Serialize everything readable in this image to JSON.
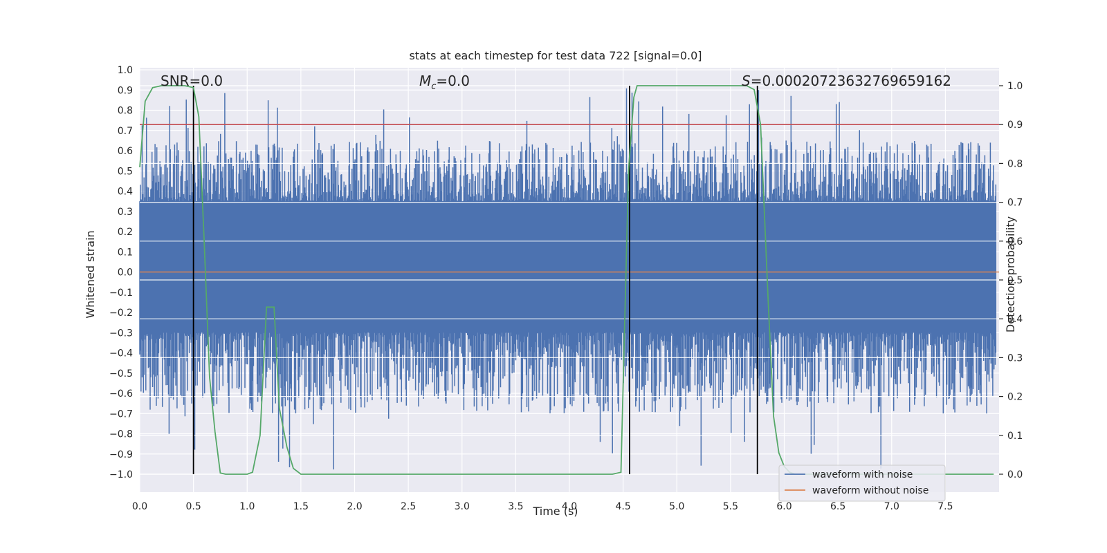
{
  "chart_data": {
    "type": "line",
    "title": "stats at each timestep for test data 722 [signal=0.0]",
    "xlabel": "Time (s)",
    "ylabel": "Whitened strain",
    "y2label": "Detection probability",
    "xlim": [
      0.0,
      8.0
    ],
    "ylim": [
      -1.18,
      1.02
    ],
    "y2lim": [
      -0.05,
      1.05
    ],
    "x_ticks": [
      "0.0",
      "0.5",
      "1.0",
      "1.5",
      "2.0",
      "2.5",
      "3.0",
      "3.5",
      "4.0",
      "4.5",
      "5.0",
      "5.5",
      "6.0",
      "6.5",
      "7.0",
      "7.5"
    ],
    "y_ticks": [
      "1.0",
      "0.9",
      "0.8",
      "0.7",
      "0.6",
      "0.5",
      "0.4",
      "0.3",
      "0.2",
      "0.1",
      "0.0",
      "−0.1",
      "−0.2",
      "−0.3",
      "−0.4",
      "−0.5",
      "−0.6",
      "−0.7",
      "−0.8",
      "−0.9",
      "−1.0"
    ],
    "y2_ticks": [
      "1.0",
      "0.9",
      "0.8",
      "0.7",
      "0.6",
      "0.5",
      "0.4",
      "0.3",
      "0.2",
      "0.1",
      "0.0"
    ],
    "grid": true,
    "annotations": {
      "snr": "SNR=0.0",
      "mc_symbol": "M",
      "mc_sub": "c",
      "mc_value": "=0.0",
      "s_symbol": "S",
      "s_value": "=0.00020723632769659162"
    },
    "threshold": {
      "y2": 0.9,
      "color": "#c44e52"
    },
    "noise_envelope": {
      "typical_peak": 0.5,
      "max_peak": 0.92,
      "min_peak": -1.0,
      "dense_band": [
        -0.3,
        0.35
      ]
    },
    "series": [
      {
        "name": "waveform with noise",
        "color": "#4c72b0",
        "x_range": [
          0.0,
          8.0
        ]
      },
      {
        "name": "waveform without noise",
        "color": "#dd8452",
        "x": [
          0.0,
          8.0
        ],
        "y": [
          0.0,
          0.0
        ]
      },
      {
        "color": "#55a868",
        "axis": "y2",
        "x": [
          0.0,
          0.05,
          0.12,
          0.2,
          0.3,
          0.42,
          0.5,
          0.55,
          0.6,
          0.65,
          0.7,
          0.75,
          0.8,
          0.9,
          1.0,
          1.05,
          1.12,
          1.18,
          1.25,
          1.3,
          1.37,
          1.43,
          1.5,
          1.6,
          2.0,
          3.0,
          4.0,
          4.4,
          4.48,
          4.55,
          4.6,
          4.63,
          4.7,
          5.0,
          5.5,
          5.65,
          5.72,
          5.78,
          5.85,
          5.9,
          5.95,
          6.0,
          6.05,
          6.1,
          6.3,
          7.0,
          7.5,
          7.95
        ],
        "y": [
          0.79,
          0.96,
          0.995,
          1.0,
          1.0,
          1.0,
          0.995,
          0.92,
          0.6,
          0.25,
          0.11,
          0.003,
          0.0,
          0.0,
          0.0,
          0.005,
          0.1,
          0.43,
          0.43,
          0.17,
          0.07,
          0.015,
          0.0,
          0.0,
          0.0,
          0.0,
          0.0,
          0.0,
          0.005,
          0.78,
          0.97,
          1.0,
          1.0,
          1.0,
          1.0,
          1.0,
          0.99,
          0.9,
          0.45,
          0.15,
          0.055,
          0.02,
          0.005,
          0.0,
          0.0,
          0.0,
          0.0,
          0.0
        ]
      }
    ],
    "vlines": [
      0.5,
      4.56,
      5.75
    ],
    "legend": {
      "placement": "lower-right"
    }
  }
}
